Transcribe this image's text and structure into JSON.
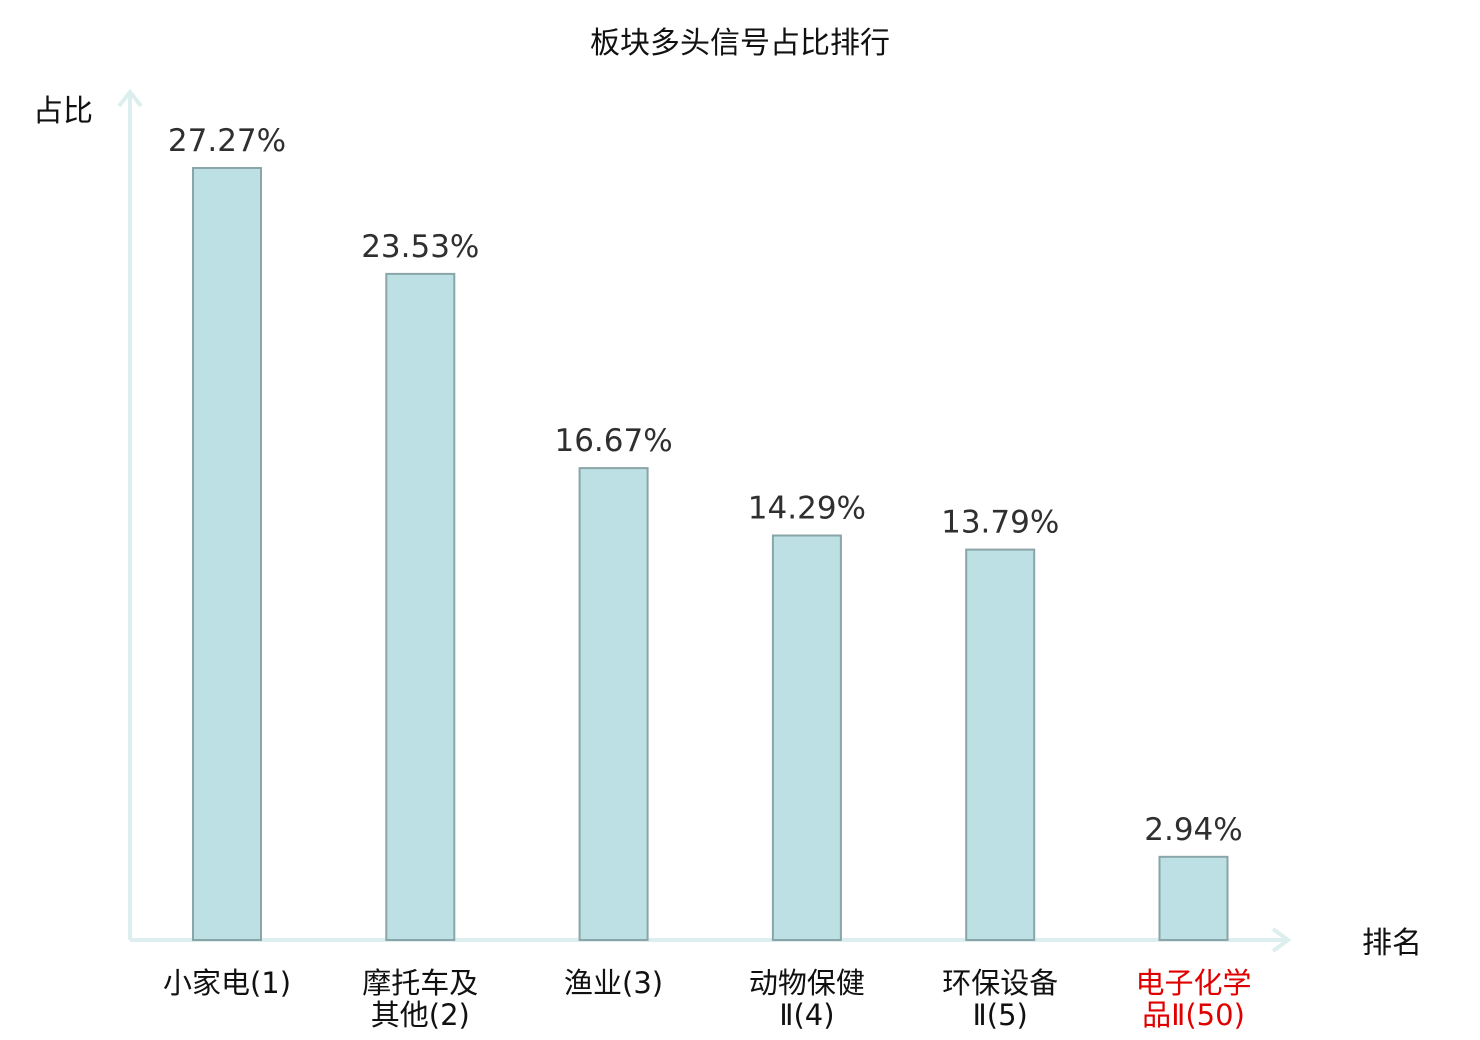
{
  "chart_data": {
    "type": "bar",
    "title": "板块多头信号占比排行",
    "ylabel": "占比",
    "xlabel": "排名",
    "ylim": [
      0,
      30
    ],
    "grid": false,
    "unit": "%",
    "categories": [
      {
        "lines": [
          "小家电(1)"
        ],
        "highlight": false
      },
      {
        "lines": [
          "摩托车及",
          "其他(2)"
        ],
        "highlight": false
      },
      {
        "lines": [
          "渔业(3)"
        ],
        "highlight": false
      },
      {
        "lines": [
          "动物保健",
          "Ⅱ(4)"
        ],
        "highlight": false
      },
      {
        "lines": [
          "环保设备",
          "Ⅱ(5)"
        ],
        "highlight": false
      },
      {
        "lines": [
          "电子化学",
          "品Ⅱ(50)"
        ],
        "highlight": true
      }
    ],
    "values": [
      27.27,
      23.53,
      16.67,
      14.29,
      13.79,
      2.94
    ],
    "value_labels": [
      "27.27%",
      "23.53%",
      "16.67%",
      "14.29%",
      "13.79%",
      "2.94%"
    ],
    "colors": {
      "bar_fill": "#bce0e3",
      "bar_stroke": "#8aa5a8",
      "axis": "#dcefee",
      "highlight_text": "#e00000",
      "normal_text": "#111111"
    }
  }
}
